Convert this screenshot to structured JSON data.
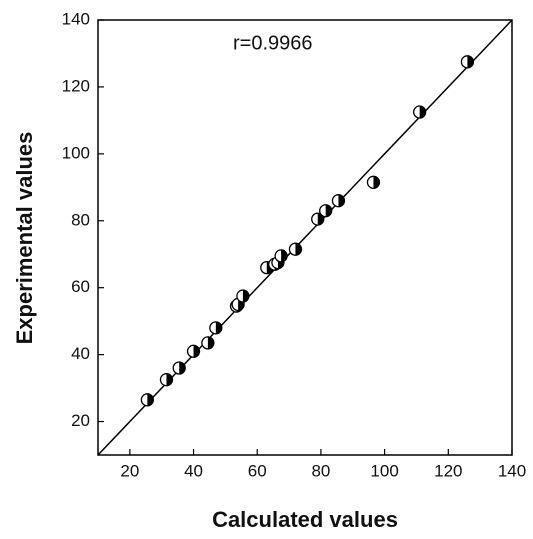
{
  "chart_data": {
    "type": "scatter",
    "xlabel": "Calculated values",
    "ylabel": "Experimental values",
    "annotation": "r=0.9966",
    "x": [
      25.5,
      31.5,
      35.5,
      40,
      44.5,
      47,
      53.5,
      54,
      55.5,
      63,
      65.5,
      66.5,
      67.5,
      72,
      79,
      81.5,
      85.5,
      96.5,
      111,
      126
    ],
    "values": [
      26.5,
      32.5,
      36,
      41,
      43.5,
      48,
      54.5,
      55,
      57.5,
      66,
      67,
      67.5,
      69.5,
      71.5,
      80.5,
      83,
      86,
      91.5,
      112.5,
      127.5
    ],
    "color": "#000000",
    "reference_line": {
      "x": [
        10,
        140
      ],
      "values": [
        10,
        140
      ]
    },
    "xlim": [
      10,
      140
    ],
    "xticks": [
      20,
      40,
      60,
      80,
      100,
      120,
      140
    ],
    "ylim": [
      10,
      140
    ],
    "yticks": [
      20,
      40,
      60,
      80,
      100,
      120,
      140
    ],
    "grid": false
  }
}
